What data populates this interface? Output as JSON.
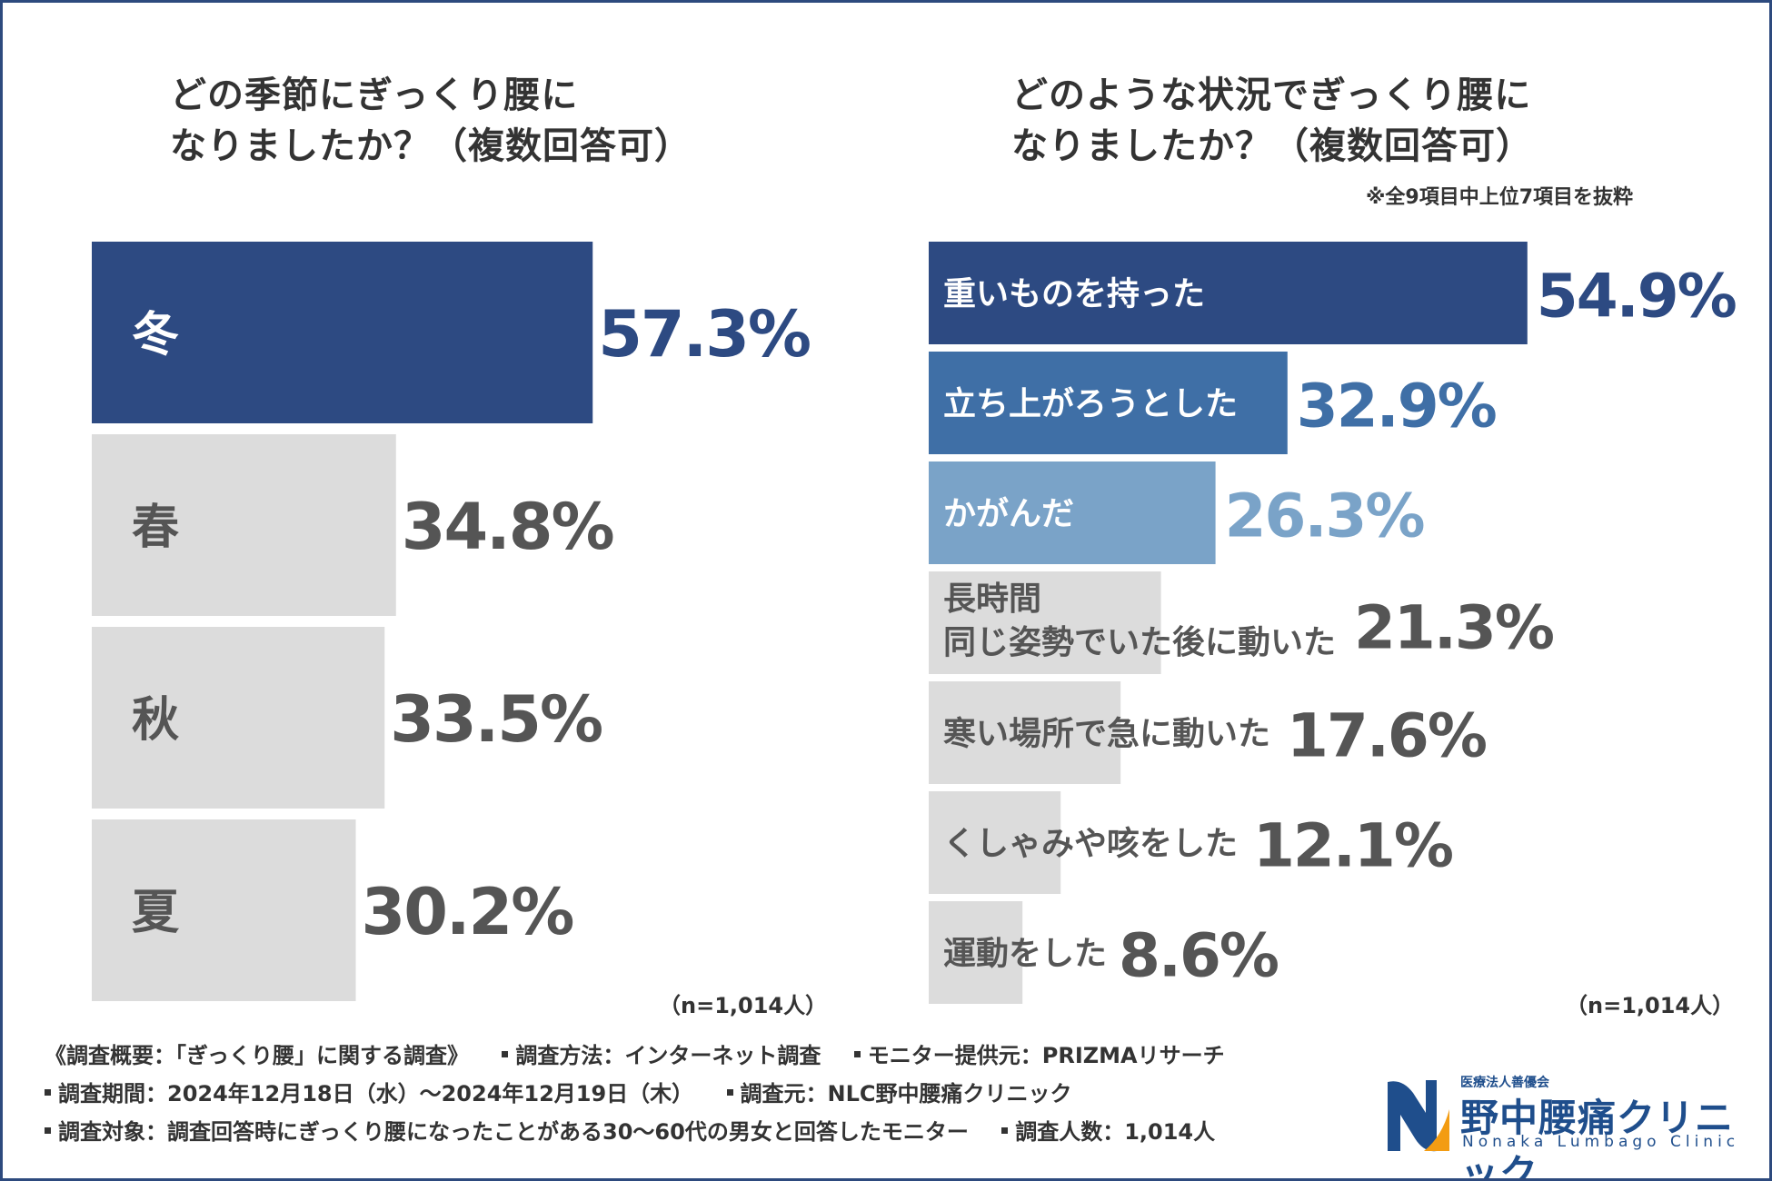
{
  "chart_data": [
    {
      "type": "bar",
      "orientation": "horizontal",
      "title_lines": [
        "どの季節にぎっくり腰に",
        "なりましたか？（複数回答可）"
      ],
      "categories": [
        "冬",
        "春",
        "秋",
        "夏"
      ],
      "values": [
        57.3,
        34.8,
        33.5,
        30.2
      ],
      "value_labels": [
        "57.3%",
        "34.8%",
        "33.5%",
        "30.2%"
      ],
      "unit": "%",
      "xlim": [
        0,
        100
      ],
      "n_label": "（n=1,014人）"
    },
    {
      "type": "bar",
      "orientation": "horizontal",
      "title_lines": [
        "どのような状況でぎっくり腰に",
        "なりましたか？（複数回答可）"
      ],
      "note": "※全9項目中上位7項目を抜粋",
      "categories": [
        "重いものを持った",
        "立ち上がろうとした",
        "かがんだ",
        "長時間\n同じ姿勢でいた後に動いた",
        "寒い場所で急に動いた",
        "くしゃみや咳をした",
        "運動をした"
      ],
      "values": [
        54.9,
        32.9,
        26.3,
        21.3,
        17.6,
        12.1,
        8.6
      ],
      "value_labels": [
        "54.9%",
        "32.9%",
        "26.3%",
        "21.3%",
        "17.6%",
        "12.1%",
        "8.6%"
      ],
      "unit": "%",
      "xlim": [
        0,
        100
      ],
      "n_label": "（n=1,014人）"
    }
  ],
  "colors": {
    "primary": "#2d4a82",
    "secondary": "#3f6fa6",
    "tertiary": "#7aa3c8",
    "gray_bar": "#dcdcdc",
    "gray_text": "#555555",
    "frame": "#2d4a7e"
  },
  "footer": {
    "row1": [
      "《調査概要：「ぎっくり腰」に関する調査》",
      "調査方法：インターネット調査",
      "モニター提供元：PRIZMAリサーチ"
    ],
    "row2": [
      "調査期間：2024年12月18日（水）～2024年12月19日（木）",
      "調査元：NLC野中腰痛クリニック"
    ],
    "row3": [
      "調査対象：調査回答時にぎっくり腰になったことがある30～60代の男女と回答したモニター",
      "調査人数：1,014人"
    ]
  },
  "logo": {
    "small": "医療法人善優会",
    "name": "野中腰痛クリニック",
    "en": "Nonaka Lumbago Clinic",
    "icon": "nonaka-clinic-logo-mark"
  }
}
